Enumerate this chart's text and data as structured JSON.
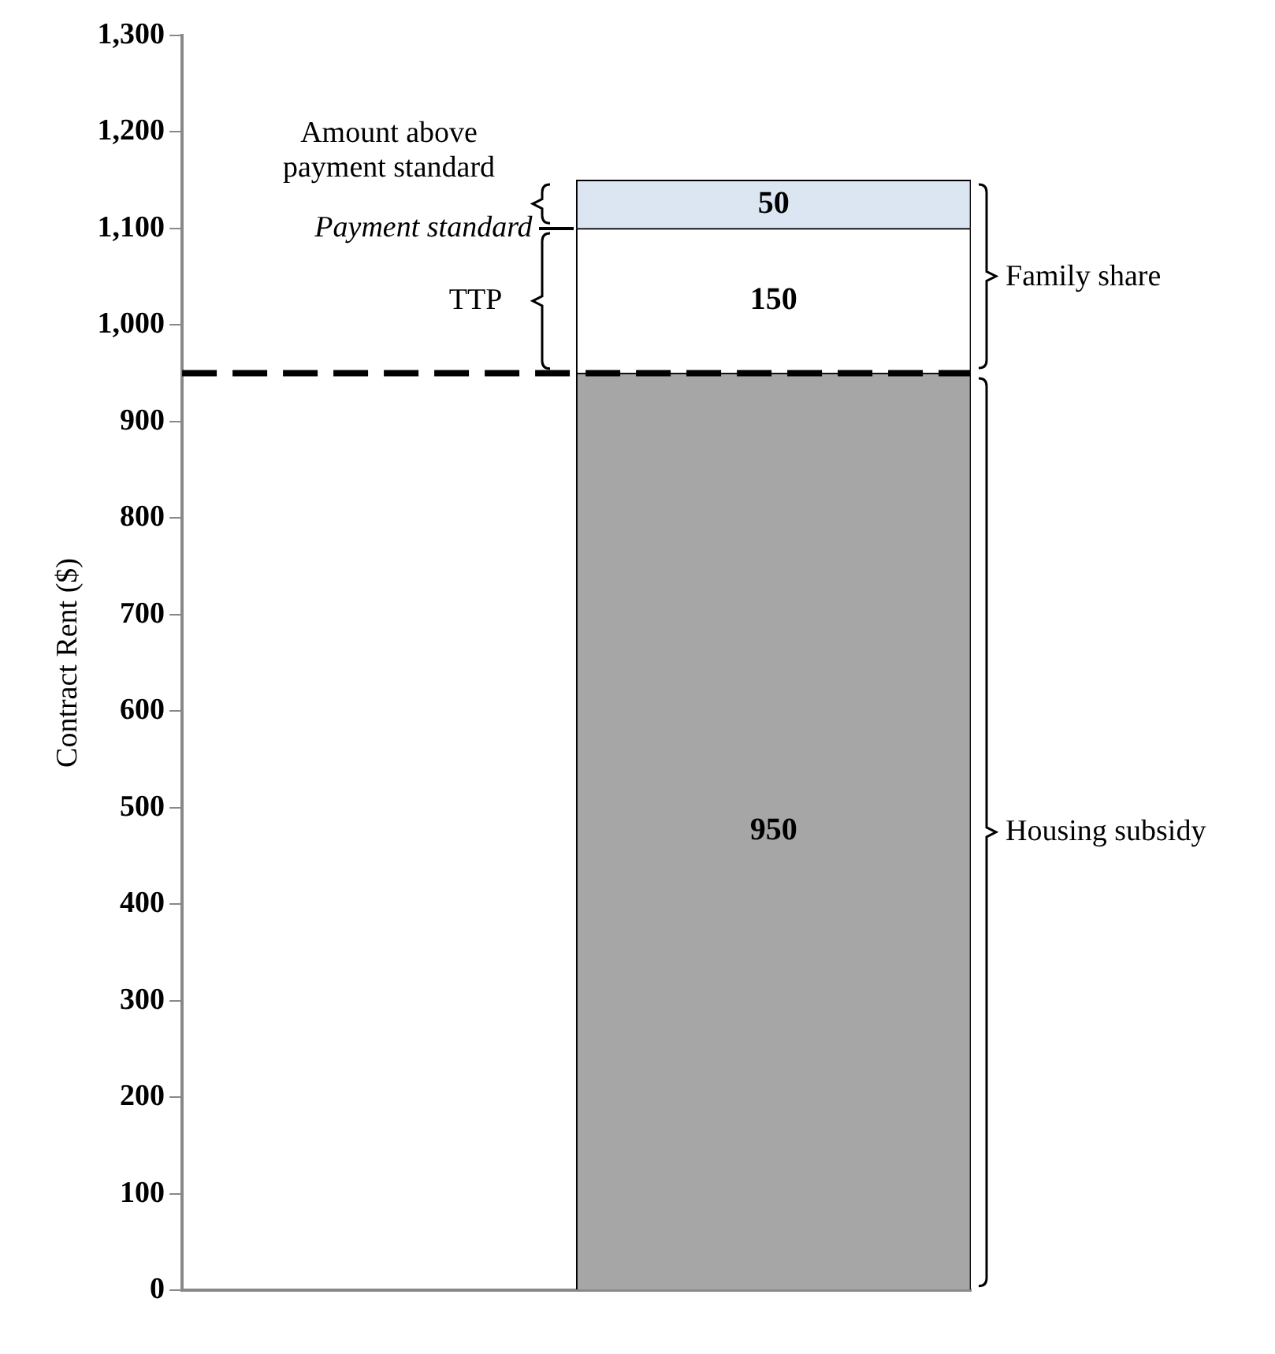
{
  "chart_data": {
    "type": "bar",
    "stacked": true,
    "ylabel": "Contract Rent ($)",
    "categories": [
      null,
      null
    ],
    "series": [
      {
        "color": "#a6a6a6",
        "values": [
          null,
          950
        ]
      },
      {
        "color": "#ffffff",
        "values": [
          null,
          150
        ]
      },
      {
        "color": "#dce6f2",
        "values": [
          null,
          50
        ]
      }
    ],
    "data_labels": true,
    "legend": false,
    "ylim": [
      0,
      1300
    ],
    "yticks": [
      0,
      100,
      200,
      300,
      400,
      500,
      600,
      700,
      800,
      900,
      {
        "value": 1000,
        "label": "1,000"
      },
      {
        "value": 1100,
        "label": "1,100"
      },
      {
        "value": 1200,
        "label": "1,200"
      },
      {
        "value": 1300,
        "label": "1,300"
      }
    ],
    "ref_lines": [
      {
        "axis": "y",
        "value": 950,
        "color": "#000000",
        "line_style": "dashed"
      }
    ],
    "annotations": [
      "Amount above payment standard",
      "Payment standard",
      "TTP",
      "Family share",
      "Housing subsidy"
    ]
  }
}
